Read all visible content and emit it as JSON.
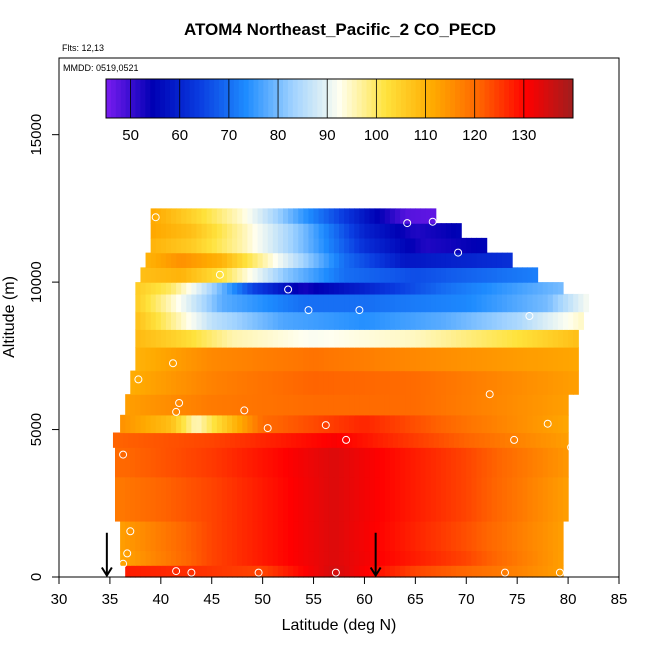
{
  "chart_data": {
    "type": "heatmap",
    "title": "ATOM4 Northeast_Pacific_2 CO_PECD",
    "flights_label": "Flts: 12,13",
    "mmdd_label": "MMDD: 0519,0521",
    "xlabel": "Latitude (deg N)",
    "ylabel": "Altitude (m)",
    "xlim": [
      30,
      85
    ],
    "ylim": [
      0,
      17600
    ],
    "x_ticks": [
      "30",
      "35",
      "40",
      "45",
      "50",
      "55",
      "60",
      "65",
      "70",
      "75",
      "80",
      "85"
    ],
    "y_ticks": [
      "0",
      "5000",
      "10000",
      "15000"
    ],
    "colorbar": {
      "range": [
        45,
        140
      ],
      "ticks": [
        "50",
        "60",
        "70",
        "80",
        "90",
        "100",
        "110",
        "120",
        "130"
      ],
      "colors": [
        "#7a1cf0",
        "#0000b4",
        "#0a3ce0",
        "#1e8cff",
        "#a0d2ff",
        "#fffff0",
        "#ffe23c",
        "#ffaa00",
        "#ff6400",
        "#ff0000",
        "#a01e1e"
      ]
    },
    "bands": [
      {
        "z0": 0,
        "z1": 400,
        "lat0": 36.5,
        "lat1": 79.5,
        "values": [
          [
            36.5,
            128
          ],
          [
            50,
            124
          ],
          [
            57,
            135
          ],
          [
            65,
            124
          ],
          [
            75,
            117
          ],
          [
            79.5,
            113
          ]
        ]
      },
      {
        "z0": 400,
        "z1": 900,
        "lat0": 36.0,
        "lat1": 79.5,
        "values": [
          [
            36,
            112
          ],
          [
            45,
            124
          ],
          [
            57,
            134
          ],
          [
            70,
            124
          ],
          [
            79.5,
            113
          ]
        ]
      },
      {
        "z0": 900,
        "z1": 1900,
        "lat0": 36.0,
        "lat1": 79.5,
        "values": [
          [
            36,
            113
          ],
          [
            45,
            124
          ],
          [
            57,
            134
          ],
          [
            70,
            123
          ],
          [
            79.5,
            113
          ]
        ]
      },
      {
        "z0": 1900,
        "z1": 3400,
        "lat0": 35.5,
        "lat1": 80.0,
        "values": [
          [
            35.5,
            118
          ],
          [
            45,
            124
          ],
          [
            57,
            134
          ],
          [
            70,
            124
          ],
          [
            80,
            113
          ]
        ]
      },
      {
        "z0": 3400,
        "z1": 4400,
        "lat0": 35.5,
        "lat1": 80.0,
        "values": [
          [
            35.5,
            120
          ],
          [
            45,
            125
          ],
          [
            57,
            134
          ],
          [
            70,
            124
          ],
          [
            80,
            114
          ]
        ]
      },
      {
        "z0": 4400,
        "z1": 4900,
        "lat0": 35.3,
        "lat1": 80.0,
        "values": [
          [
            35.3,
            121
          ],
          [
            45,
            124
          ],
          [
            57,
            131
          ],
          [
            70,
            121
          ],
          [
            80,
            113
          ]
        ]
      },
      {
        "z0": 4900,
        "z1": 5500,
        "lat0": 36.0,
        "lat1": 80.0,
        "values": [
          [
            36,
            115
          ],
          [
            41,
            108
          ],
          [
            43.5,
            95
          ],
          [
            46,
            105
          ],
          [
            50,
            120
          ],
          [
            60,
            127
          ],
          [
            70,
            119
          ],
          [
            80,
            112
          ]
        ]
      },
      {
        "z0": 5500,
        "z1": 6200,
        "lat0": 36.5,
        "lat1": 80.0,
        "values": [
          [
            36.5,
            113
          ],
          [
            45,
            118
          ],
          [
            55,
            120
          ],
          [
            65,
            120
          ],
          [
            80,
            113
          ]
        ]
      },
      {
        "z0": 6200,
        "z1": 7000,
        "lat0": 37.0,
        "lat1": 81.0,
        "values": [
          [
            37,
            111
          ],
          [
            45,
            117
          ],
          [
            55,
            121
          ],
          [
            65,
            120
          ],
          [
            81,
            113
          ]
        ]
      },
      {
        "z0": 7000,
        "z1": 7800,
        "lat0": 37.5,
        "lat1": 81.0,
        "values": [
          [
            37.5,
            110
          ],
          [
            45,
            116
          ],
          [
            55,
            119
          ],
          [
            65,
            116
          ],
          [
            81,
            112
          ]
        ]
      },
      {
        "z0": 7800,
        "z1": 8400,
        "lat0": 37.5,
        "lat1": 81.0,
        "values": [
          [
            37.5,
            109
          ],
          [
            42,
            104
          ],
          [
            47,
            96
          ],
          [
            55,
            92
          ],
          [
            65,
            95
          ],
          [
            75,
            102
          ],
          [
            81,
            108
          ]
        ]
      },
      {
        "z0": 8400,
        "z1": 9000,
        "lat0": 37.5,
        "lat1": 81.5,
        "values": [
          [
            37.5,
            108
          ],
          [
            41,
            98
          ],
          [
            45,
            86
          ],
          [
            52,
            77
          ],
          [
            60,
            74
          ],
          [
            68,
            78
          ],
          [
            75,
            84
          ],
          [
            81.5,
            95
          ]
        ]
      },
      {
        "z0": 9000,
        "z1": 9600,
        "lat0": 37.5,
        "lat1": 82.0,
        "values": [
          [
            37.5,
            106
          ],
          [
            41,
            95
          ],
          [
            46,
            78
          ],
          [
            54,
            70
          ],
          [
            60,
            70
          ],
          [
            70,
            73
          ],
          [
            78,
            80
          ],
          [
            82,
            92
          ]
        ]
      },
      {
        "z0": 9600,
        "z1": 10000,
        "lat0": 37.5,
        "lat1": 79.5,
        "values": [
          [
            37.5,
            106
          ],
          [
            41,
            100
          ],
          [
            44,
            88
          ],
          [
            49,
            65
          ],
          [
            54,
            53
          ],
          [
            60,
            60
          ],
          [
            68,
            70
          ],
          [
            79.5,
            80
          ]
        ]
      },
      {
        "z0": 10000,
        "z1": 10500,
        "lat0": 38.0,
        "lat1": 77.0,
        "values": [
          [
            38,
            108
          ],
          [
            42,
            110
          ],
          [
            46,
            102
          ],
          [
            52,
            82
          ],
          [
            58,
            70
          ],
          [
            65,
            66
          ],
          [
            77,
            72
          ]
        ]
      },
      {
        "z0": 10500,
        "z1": 11000,
        "lat0": 38.5,
        "lat1": 74.5,
        "values": [
          [
            38.5,
            110
          ],
          [
            42,
            115
          ],
          [
            46,
            110
          ],
          [
            52,
            90
          ],
          [
            58,
            70
          ],
          [
            64,
            58
          ],
          [
            74.5,
            62
          ]
        ]
      },
      {
        "z0": 11000,
        "z1": 11500,
        "lat0": 39.0,
        "lat1": 72.0,
        "values": [
          [
            39,
            110
          ],
          [
            43,
            106
          ],
          [
            48,
            96
          ],
          [
            54,
            80
          ],
          [
            60,
            62
          ],
          [
            66,
            52
          ],
          [
            72,
            55
          ]
        ]
      },
      {
        "z0": 11500,
        "z1": 12000,
        "lat0": 39.0,
        "lat1": 69.5,
        "values": [
          [
            39,
            112
          ],
          [
            43,
            108
          ],
          [
            48,
            96
          ],
          [
            54,
            80
          ],
          [
            60,
            60
          ],
          [
            65,
            52
          ],
          [
            69.5,
            55
          ]
        ]
      },
      {
        "z0": 12000,
        "z1": 12500,
        "lat0": 39.0,
        "lat1": 67.0,
        "values": [
          [
            39,
            112
          ],
          [
            43,
            105
          ],
          [
            48,
            94
          ],
          [
            54,
            75
          ],
          [
            60,
            58
          ],
          [
            64,
            48
          ],
          [
            67,
            47
          ]
        ]
      }
    ],
    "flight_points": [
      [
        36.3,
        4150
      ],
      [
        36.3,
        450
      ],
      [
        36.7,
        800
      ],
      [
        37.0,
        1550
      ],
      [
        37.8,
        6700
      ],
      [
        41.2,
        7250
      ],
      [
        41.5,
        5600
      ],
      [
        41.8,
        5900
      ],
      [
        41.5,
        200
      ],
      [
        43.0,
        150
      ],
      [
        39.5,
        12200
      ],
      [
        45.8,
        10250
      ],
      [
        48.2,
        5650
      ],
      [
        49.6,
        150
      ],
      [
        50.5,
        5050
      ],
      [
        52.5,
        9750
      ],
      [
        54.5,
        9050
      ],
      [
        56.2,
        5150
      ],
      [
        57.2,
        150
      ],
      [
        58.2,
        4650
      ],
      [
        59.5,
        9050
      ],
      [
        64.2,
        12000
      ],
      [
        66.7,
        12050
      ],
      [
        69.2,
        11000
      ],
      [
        72.3,
        6200
      ],
      [
        73.8,
        150
      ],
      [
        74.7,
        4650
      ],
      [
        76.2,
        8850
      ],
      [
        78.0,
        5200
      ],
      [
        79.2,
        150
      ],
      [
        80.3,
        4400
      ]
    ],
    "arrows": [
      34.7,
      61.1
    ],
    "grid": false
  }
}
